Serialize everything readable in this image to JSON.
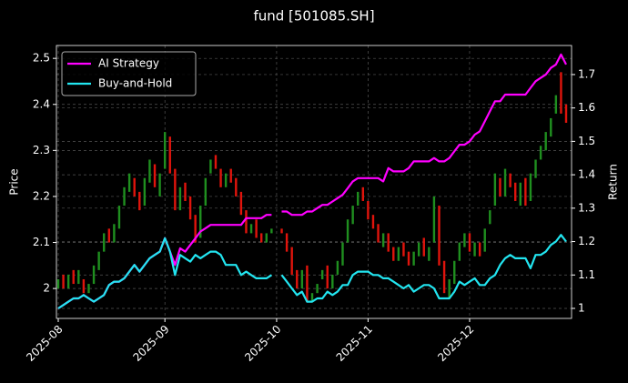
{
  "chart_data": {
    "type": "candlestick",
    "title": "fund [501085.SH]",
    "ylabel": "Price",
    "y2label": "Return",
    "categories": [
      "2025-08",
      null,
      null,
      null,
      null,
      null,
      null,
      null,
      null,
      null,
      null,
      null,
      null,
      null,
      null,
      null,
      null,
      null,
      null,
      null,
      null,
      "2025-09",
      null,
      null,
      null,
      null,
      null,
      null,
      null,
      null,
      null,
      null,
      null,
      null,
      null,
      null,
      null,
      null,
      null,
      null,
      null,
      null,
      null,
      "2025-10",
      null,
      null,
      null,
      null,
      null,
      null,
      null,
      null,
      null,
      null,
      null,
      null,
      null,
      null,
      null,
      null,
      null,
      "2025-11",
      null,
      null,
      null,
      null,
      null,
      null,
      null,
      null,
      null,
      null,
      null,
      null,
      null,
      null,
      null,
      null,
      null,
      null,
      null,
      "2025-12",
      null,
      null,
      null,
      null,
      null,
      null,
      null,
      null,
      null,
      null,
      null,
      null,
      null,
      null,
      null,
      null,
      null,
      null,
      null
    ],
    "open": [
      2.0,
      2.03,
      2.0,
      2.04,
      2.01,
      2.02,
      1.99,
      2.01,
      2.04,
      2.08,
      2.13,
      2.1,
      2.13,
      2.18,
      2.21,
      2.24,
      2.21,
      2.18,
      2.23,
      2.27,
      2.2,
      2.26,
      2.33,
      2.26,
      2.17,
      2.23,
      2.2,
      2.16,
      2.11,
      2.18,
      2.25,
      2.29,
      2.26,
      2.22,
      2.26,
      2.24,
      2.21,
      2.17,
      2.12,
      2.15,
      2.12,
      2.1,
      2.12,
      null,
      2.13,
      2.12,
      2.09,
      2.04,
      2.0,
      2.05,
      1.97,
      1.99,
      2.02,
      2.05,
      2.0,
      2.03,
      2.05,
      2.1,
      2.14,
      2.18,
      2.22,
      2.19,
      2.16,
      2.14,
      2.09,
      2.12,
      2.09,
      2.06,
      2.1,
      2.08,
      2.05,
      2.07,
      2.11,
      2.06,
      2.1,
      2.18,
      2.06,
      1.98,
      2.01,
      2.06,
      2.09,
      2.12,
      2.07,
      2.1,
      2.08,
      2.14,
      2.18,
      2.24,
      2.2,
      2.25,
      2.23,
      2.18,
      2.24,
      2.19,
      2.24,
      2.28,
      2.3,
      2.33,
      2.38,
      2.47,
      2.4
    ],
    "close": [
      2.02,
      2.0,
      2.03,
      2.01,
      2.04,
      1.99,
      2.01,
      2.05,
      2.08,
      2.12,
      2.1,
      2.14,
      2.18,
      2.22,
      2.25,
      2.2,
      2.17,
      2.24,
      2.28,
      2.22,
      2.25,
      2.34,
      2.25,
      2.17,
      2.22,
      2.19,
      2.15,
      2.1,
      2.18,
      2.24,
      2.28,
      2.26,
      2.22,
      2.25,
      2.23,
      2.2,
      2.16,
      2.12,
      2.14,
      2.11,
      2.1,
      2.12,
      2.13,
      null,
      2.12,
      2.08,
      2.03,
      2.0,
      2.04,
      1.97,
      1.99,
      2.01,
      2.04,
      2.0,
      2.03,
      2.06,
      2.1,
      2.15,
      2.18,
      2.21,
      2.19,
      2.15,
      2.13,
      2.1,
      2.12,
      2.08,
      2.06,
      2.09,
      2.07,
      2.05,
      2.08,
      2.1,
      2.07,
      2.09,
      2.2,
      2.05,
      1.99,
      2.02,
      2.06,
      2.1,
      2.12,
      2.08,
      2.1,
      2.07,
      2.13,
      2.17,
      2.25,
      2.2,
      2.26,
      2.22,
      2.19,
      2.23,
      2.18,
      2.25,
      2.28,
      2.31,
      2.34,
      2.37,
      2.42,
      2.38,
      2.36
    ],
    "up_color": "#1f8f1f",
    "down_color": "#e0140c",
    "series": [
      {
        "name": "AI Strategy",
        "color": "#ff00ff",
        "axis": "y2",
        "values": [
          1.0,
          1.01,
          1.02,
          1.03,
          1.03,
          1.04,
          1.03,
          1.02,
          1.03,
          1.04,
          1.07,
          1.08,
          1.08,
          1.09,
          1.11,
          1.13,
          1.11,
          1.13,
          1.15,
          1.16,
          1.17,
          1.21,
          1.17,
          1.13,
          1.18,
          1.17,
          1.19,
          1.21,
          1.23,
          1.24,
          1.25,
          1.25,
          1.25,
          1.25,
          1.25,
          1.25,
          1.25,
          1.27,
          1.27,
          1.27,
          1.27,
          1.28,
          1.28,
          null,
          1.29,
          1.29,
          1.28,
          1.28,
          1.28,
          1.29,
          1.29,
          1.3,
          1.31,
          1.31,
          1.32,
          1.33,
          1.34,
          1.36,
          1.38,
          1.39,
          1.39,
          1.39,
          1.39,
          1.39,
          1.38,
          1.42,
          1.41,
          1.41,
          1.41,
          1.42,
          1.44,
          1.44,
          1.44,
          1.44,
          1.45,
          1.44,
          1.44,
          1.45,
          1.47,
          1.49,
          1.49,
          1.5,
          1.52,
          1.53,
          1.56,
          1.59,
          1.62,
          1.62,
          1.64,
          1.64,
          1.64,
          1.64,
          1.64,
          1.66,
          1.68,
          1.69,
          1.7,
          1.72,
          1.73,
          1.76,
          1.73
        ]
      },
      {
        "name": "Buy-and-Hold",
        "color": "#22e5f0",
        "axis": "y2",
        "values": [
          1.0,
          1.01,
          1.02,
          1.03,
          1.03,
          1.04,
          1.03,
          1.02,
          1.03,
          1.04,
          1.07,
          1.08,
          1.08,
          1.09,
          1.11,
          1.13,
          1.11,
          1.13,
          1.15,
          1.16,
          1.17,
          1.21,
          1.17,
          1.1,
          1.16,
          1.15,
          1.14,
          1.16,
          1.15,
          1.16,
          1.17,
          1.17,
          1.16,
          1.13,
          1.13,
          1.13,
          1.1,
          1.11,
          1.1,
          1.09,
          1.09,
          1.09,
          1.1,
          null,
          1.1,
          1.08,
          1.06,
          1.04,
          1.05,
          1.02,
          1.02,
          1.03,
          1.03,
          1.05,
          1.04,
          1.05,
          1.07,
          1.07,
          1.1,
          1.11,
          1.11,
          1.11,
          1.1,
          1.1,
          1.09,
          1.09,
          1.08,
          1.07,
          1.06,
          1.07,
          1.05,
          1.06,
          1.07,
          1.07,
          1.06,
          1.03,
          1.03,
          1.03,
          1.05,
          1.08,
          1.07,
          1.08,
          1.09,
          1.07,
          1.07,
          1.09,
          1.1,
          1.13,
          1.15,
          1.16,
          1.15,
          1.15,
          1.15,
          1.12,
          1.16,
          1.16,
          1.17,
          1.19,
          1.2,
          1.22,
          1.2
        ]
      }
    ],
    "ylim": [
      1.935,
      2.528
    ],
    "yticks": [
      2.0,
      2.1,
      2.2,
      2.3,
      2.4,
      2.5
    ],
    "y2lim": [
      0.97,
      1.787
    ],
    "y2ticks": [
      1.0,
      1.1,
      1.2,
      1.3,
      1.4,
      1.5,
      1.6,
      1.7
    ],
    "grid": true,
    "legend": "upper left"
  }
}
